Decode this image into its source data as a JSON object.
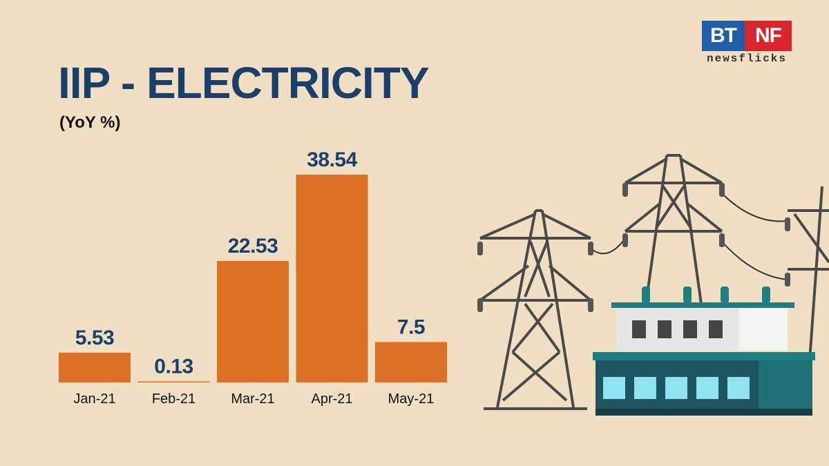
{
  "header": {
    "title": "IIP - ELECTRICITY",
    "subtitle": "(YoY %)"
  },
  "logo": {
    "left_text": "BT",
    "right_text": "NF",
    "tagline": "newsflicks"
  },
  "colors": {
    "background": "#f0dfc3",
    "bar": "#dd7027",
    "title": "#1b3f6b",
    "label": "#1b3f6b"
  },
  "chart_data": {
    "type": "bar",
    "title": "IIP - ELECTRICITY",
    "subtitle": "(YoY %)",
    "categories": [
      "Jan-21",
      "Feb-21",
      "Mar-21",
      "Apr-21",
      "May-21"
    ],
    "values": [
      5.53,
      0.13,
      22.53,
      38.54,
      7.5
    ],
    "value_labels": [
      "5.53",
      "0.13",
      "22.53",
      "38.54",
      "7.5"
    ],
    "xlabel": "",
    "ylabel": "",
    "ylim": [
      0,
      38.54
    ],
    "grid": false,
    "legend": "none"
  },
  "illustration": {
    "icon": "power-pylons-substation-icon"
  }
}
